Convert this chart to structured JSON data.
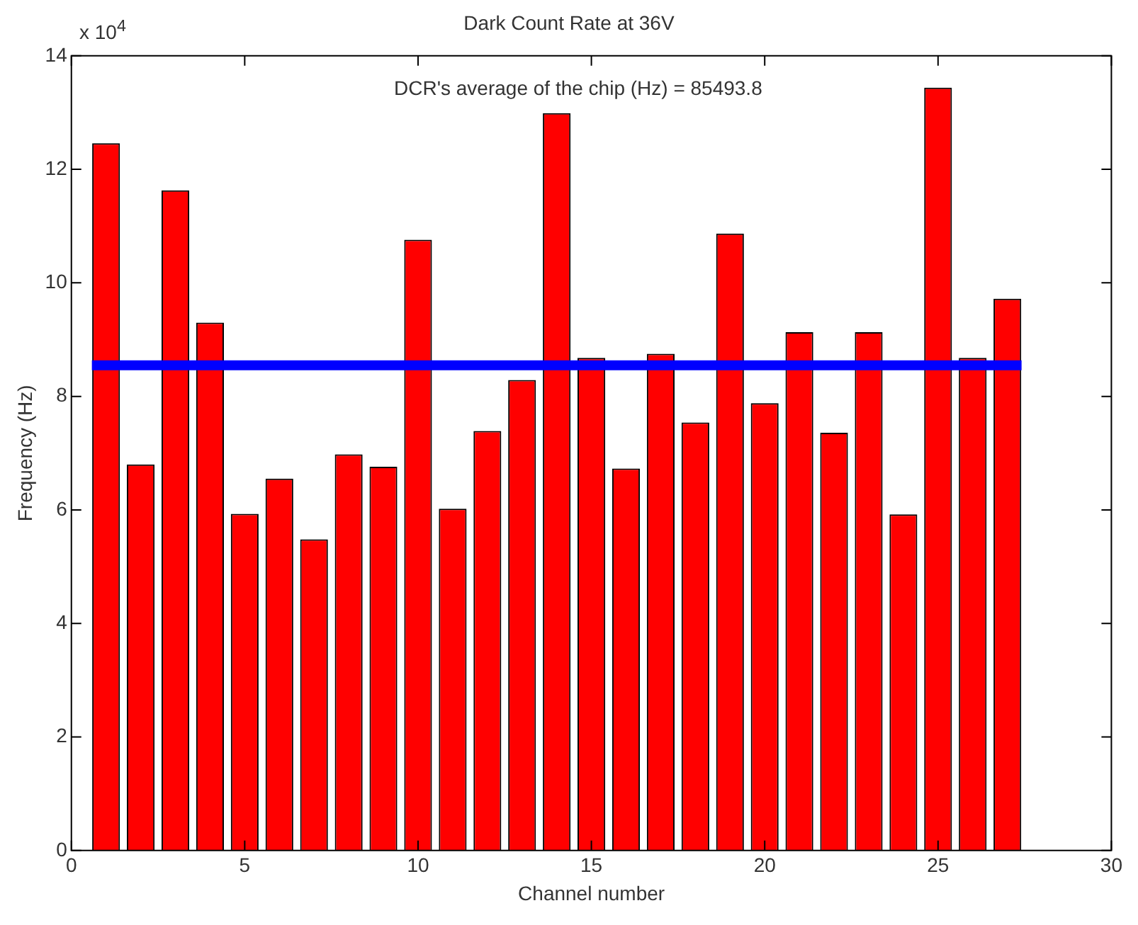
{
  "chart_data": {
    "type": "bar",
    "title": "Dark Count Rate at 36V",
    "xlabel": "Channel number",
    "ylabel": "Frequency (Hz)",
    "x": [
      1,
      2,
      3,
      4,
      5,
      6,
      7,
      8,
      9,
      10,
      11,
      12,
      13,
      14,
      15,
      16,
      17,
      18,
      19,
      20,
      21,
      22,
      23,
      24,
      25,
      26,
      27
    ],
    "values": [
      12.46,
      6.8,
      11.63,
      9.3,
      5.93,
      6.55,
      5.48,
      6.98,
      6.76,
      10.76,
      6.02,
      7.39,
      8.29,
      12.99,
      8.68,
      6.73,
      8.75,
      7.54,
      10.87,
      7.88,
      9.13,
      7.36,
      9.13,
      5.92,
      13.44,
      8.68,
      9.72
    ],
    "color": "#ff0000",
    "xlim": [
      0,
      30
    ],
    "xticks": [
      0,
      5,
      10,
      15,
      20,
      25,
      30
    ],
    "ylim": [
      0,
      14
    ],
    "yticks": [
      0,
      2,
      4,
      6,
      8,
      10,
      12,
      14
    ],
    "ref_lines": [
      {
        "axis": "y",
        "value": 8.54938,
        "color": "#0000ff"
      }
    ],
    "annotations": [
      "x 10$^{4}$",
      "DCR's average of the chip (Hz) = 85493.8"
    ],
    "grid": false,
    "legend": false
  }
}
